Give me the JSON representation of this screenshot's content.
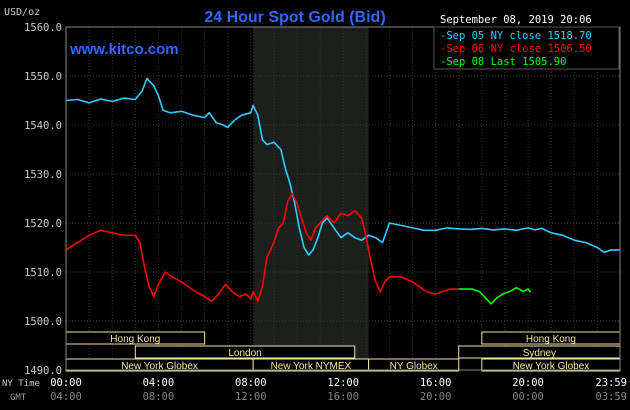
{
  "chart_data": {
    "type": "line",
    "title": "24 Hour Spot Gold (Bid)",
    "watermark": "www.kitco.com",
    "timestamp": "September 08, 2019 20:06",
    "ylabel": "USD/oz",
    "ylim": [
      1490,
      1560
    ],
    "y_ticks": [
      "1560.0",
      "1550.0",
      "1540.0",
      "1530.0",
      "1520.0",
      "1510.0",
      "1500.0",
      "1490.0"
    ],
    "x_ticks_ny": [
      "00:00",
      "04:00",
      "08:00",
      "12:00",
      "16:00",
      "20:00",
      "23:59"
    ],
    "x_ticks_gmt": [
      "04:00",
      "08:00",
      "12:00",
      "16:00",
      "20:00",
      "00:00",
      "03:59"
    ],
    "x_axis_label_ny": "NY Time",
    "x_axis_label_gmt": "GMT",
    "shaded_hours": [
      8.1,
      13.1
    ],
    "grid": true,
    "legend_position": "top-right",
    "series": [
      {
        "name": "Sep 05 NY close 1518.70",
        "color": "#33ccff",
        "points": [
          [
            0,
            1545
          ],
          [
            0.5,
            1545.2
          ],
          [
            1,
            1544.5
          ],
          [
            1.5,
            1545.3
          ],
          [
            2,
            1544.8
          ],
          [
            2.5,
            1545.5
          ],
          [
            3,
            1545.2
          ],
          [
            3.3,
            1547
          ],
          [
            3.5,
            1549.5
          ],
          [
            3.8,
            1548
          ],
          [
            4,
            1546
          ],
          [
            4.2,
            1543
          ],
          [
            4.5,
            1542.5
          ],
          [
            5,
            1542.8
          ],
          [
            5.5,
            1542
          ],
          [
            6,
            1541.5
          ],
          [
            6.2,
            1542.5
          ],
          [
            6.5,
            1540.5
          ],
          [
            6.8,
            1540
          ],
          [
            7,
            1539.5
          ],
          [
            7.3,
            1541
          ],
          [
            7.6,
            1542
          ],
          [
            8,
            1542.5
          ],
          [
            8.1,
            1544
          ],
          [
            8.3,
            1542
          ],
          [
            8.5,
            1537
          ],
          [
            8.7,
            1536
          ],
          [
            9,
            1536.5
          ],
          [
            9.3,
            1535
          ],
          [
            9.5,
            1531
          ],
          [
            9.7,
            1528
          ],
          [
            9.9,
            1524
          ],
          [
            10.1,
            1519
          ],
          [
            10.3,
            1515
          ],
          [
            10.5,
            1513.5
          ],
          [
            10.7,
            1514.5
          ],
          [
            10.9,
            1517
          ],
          [
            11.1,
            1520
          ],
          [
            11.3,
            1521
          ],
          [
            11.6,
            1519
          ],
          [
            11.9,
            1517
          ],
          [
            12.2,
            1518
          ],
          [
            12.5,
            1517
          ],
          [
            12.8,
            1516.5
          ],
          [
            13.1,
            1517.5
          ],
          [
            13.4,
            1517
          ],
          [
            13.7,
            1516
          ],
          [
            14,
            1520
          ],
          [
            14.5,
            1519.5
          ],
          [
            15,
            1519
          ],
          [
            15.5,
            1518.5
          ],
          [
            16,
            1518.5
          ],
          [
            16.5,
            1519
          ],
          [
            17,
            1518.8
          ],
          [
            17.5,
            1518.7
          ],
          [
            18,
            1518.9
          ],
          [
            18.5,
            1518.6
          ],
          [
            19,
            1518.8
          ],
          [
            19.5,
            1518.5
          ],
          [
            20,
            1519
          ],
          [
            20.3,
            1518.6
          ],
          [
            20.6,
            1518.9
          ],
          [
            21,
            1518
          ],
          [
            21.5,
            1517.5
          ],
          [
            22,
            1516.5
          ],
          [
            22.5,
            1516
          ],
          [
            23,
            1515
          ],
          [
            23.3,
            1514
          ],
          [
            23.6,
            1514.5
          ],
          [
            23.98,
            1514.5
          ]
        ]
      },
      {
        "name": "Sep 06 NY close 1506.50",
        "color": "#ff0000",
        "points": [
          [
            0,
            1514.5
          ],
          [
            0.5,
            1516
          ],
          [
            1,
            1517.5
          ],
          [
            1.5,
            1518.5
          ],
          [
            2,
            1518
          ],
          [
            2.5,
            1517.5
          ],
          [
            3,
            1517.5
          ],
          [
            3.2,
            1516
          ],
          [
            3.4,
            1511
          ],
          [
            3.6,
            1507
          ],
          [
            3.8,
            1505
          ],
          [
            4,
            1507.5
          ],
          [
            4.3,
            1510
          ],
          [
            4.6,
            1509
          ],
          [
            5,
            1508
          ],
          [
            5.3,
            1507
          ],
          [
            5.6,
            1506
          ],
          [
            6,
            1505
          ],
          [
            6.3,
            1504
          ],
          [
            6.6,
            1505.5
          ],
          [
            6.9,
            1507.5
          ],
          [
            7.2,
            1506
          ],
          [
            7.5,
            1505
          ],
          [
            7.8,
            1505.5
          ],
          [
            8,
            1504.5
          ],
          [
            8.1,
            1506
          ],
          [
            8.3,
            1504
          ],
          [
            8.5,
            1507
          ],
          [
            8.7,
            1513
          ],
          [
            9,
            1516
          ],
          [
            9.2,
            1519
          ],
          [
            9.4,
            1520
          ],
          [
            9.6,
            1524.5
          ],
          [
            9.8,
            1526
          ],
          [
            10,
            1524
          ],
          [
            10.2,
            1521
          ],
          [
            10.4,
            1518
          ],
          [
            10.6,
            1516.5
          ],
          [
            10.8,
            1519
          ],
          [
            11,
            1520
          ],
          [
            11.3,
            1521.5
          ],
          [
            11.6,
            1520
          ],
          [
            11.9,
            1522
          ],
          [
            12.2,
            1521.5
          ],
          [
            12.5,
            1522.5
          ],
          [
            12.8,
            1521
          ],
          [
            13,
            1517
          ],
          [
            13.2,
            1512
          ],
          [
            13.4,
            1508
          ],
          [
            13.6,
            1506
          ],
          [
            13.8,
            1508
          ],
          [
            14,
            1509
          ],
          [
            14.5,
            1509
          ],
          [
            15,
            1508
          ],
          [
            15.3,
            1507
          ],
          [
            15.6,
            1506
          ],
          [
            16,
            1505.5
          ],
          [
            16.3,
            1506
          ],
          [
            16.6,
            1506.5
          ],
          [
            17,
            1506.5
          ]
        ]
      },
      {
        "name": "Sep 08 Last 1505.90",
        "color": "#00ff00",
        "points": [
          [
            17,
            1506.5
          ],
          [
            17.3,
            1506.5
          ],
          [
            17.6,
            1506.5
          ],
          [
            17.9,
            1506
          ],
          [
            18.2,
            1504.5
          ],
          [
            18.4,
            1503.5
          ],
          [
            18.6,
            1504.5
          ],
          [
            18.9,
            1505.5
          ],
          [
            19.2,
            1506
          ],
          [
            19.5,
            1506.8
          ],
          [
            19.8,
            1506
          ],
          [
            20,
            1506.5
          ],
          [
            20.1,
            1505.9
          ]
        ]
      }
    ],
    "sessions": [
      {
        "label": "Hong Kong",
        "color": "#f5e6a0",
        "start": 0,
        "end": 6,
        "row": 0
      },
      {
        "label": "Hong Kong",
        "color": "#f5e6a0",
        "start": 18,
        "end": 23.98,
        "row": 0
      },
      {
        "label": "London",
        "color": "#f5e6a0",
        "start": 3,
        "end": 12.5,
        "row": 1
      },
      {
        "label": "Sydney",
        "color": "#f5e6a0",
        "start": 17,
        "end": 23.98,
        "row": 1
      },
      {
        "label": "New York Globex",
        "color": "#f5e6a0",
        "start": 0,
        "end": 8.1,
        "row": 2
      },
      {
        "label": "New York NYMEX",
        "color": "#f5e6a0",
        "start": 8.1,
        "end": 13.1,
        "row": 2
      },
      {
        "label": "NY Globex",
        "color": "#f5e6a0",
        "start": 13.1,
        "end": 17,
        "row": 2
      },
      {
        "label": "New York Globex",
        "color": "#f5e6a0",
        "start": 18,
        "end": 23.98,
        "row": 2
      }
    ]
  }
}
